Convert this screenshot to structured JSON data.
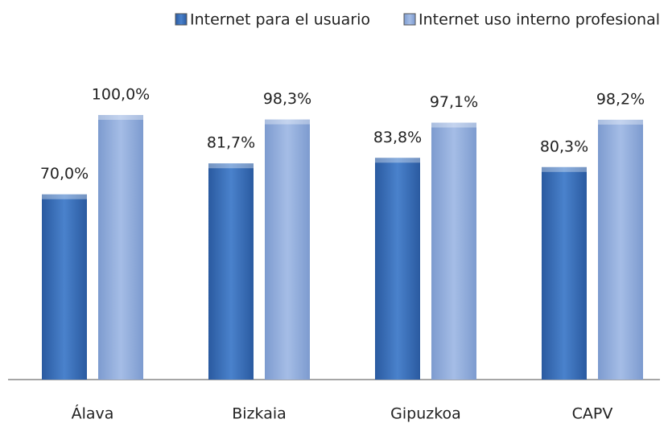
{
  "chart_data": {
    "type": "bar",
    "categories": [
      "Álava",
      "Bizkaia",
      "Gipuzkoa",
      "CAPV"
    ],
    "series": [
      {
        "name": "Internet para el usuario",
        "color": "#3a6fba",
        "values": [
          70.0,
          81.7,
          83.8,
          80.3
        ],
        "value_labels": [
          "70,0%",
          "81,7%",
          "83,8%",
          "80,3%"
        ]
      },
      {
        "name": "Internet uso interno profesional",
        "color": "#91acd9",
        "values": [
          100.0,
          98.3,
          97.1,
          98.2
        ],
        "value_labels": [
          "100,0%",
          "98,3%",
          "97,1%",
          "98,2%"
        ]
      }
    ],
    "legend": "top"
  }
}
